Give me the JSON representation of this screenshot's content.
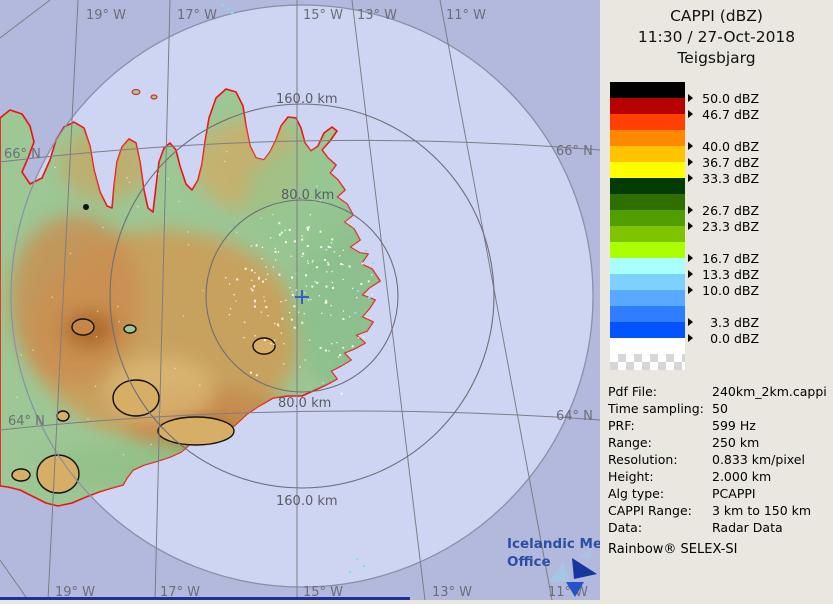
{
  "panel": {
    "title_lines": [
      "CAPPI (dBZ)",
      "11:30 / 27-Oct-2018",
      "Teigsbjarg"
    ],
    "scale": {
      "unit": "dBZ",
      "bands": [
        {
          "color": "#000000",
          "label": "50.0"
        },
        {
          "color": "#b70000",
          "label": "46.7"
        },
        {
          "color": "#ff4000",
          "label": null
        },
        {
          "color": "#ff8800",
          "label": "40.0"
        },
        {
          "color": "#ffc300",
          "label": "36.7"
        },
        {
          "color": "#ffff00",
          "label": "33.3"
        },
        {
          "color": "#043b00",
          "label": null
        },
        {
          "color": "#2e6f00",
          "label": "26.7"
        },
        {
          "color": "#529d00",
          "label": "23.3"
        },
        {
          "color": "#7ec400",
          "label": null
        },
        {
          "color": "#aaff00",
          "label": "16.7"
        },
        {
          "color": "#a8ffff",
          "label": "13.3"
        },
        {
          "color": "#7ed1ff",
          "label": "10.0"
        },
        {
          "color": "#58a9ff",
          "label": null
        },
        {
          "color": "#2e7eff",
          "label": "3.3"
        },
        {
          "color": "#0353ff",
          "label": "0.0"
        },
        {
          "color": "#ffffff",
          "label": null
        },
        {
          "color": "checker",
          "label": null
        }
      ]
    },
    "metadata": [
      {
        "label": "Pdf File:",
        "value": "240km_2km.cappi"
      },
      {
        "label": "Time sampling:",
        "value": "50"
      },
      {
        "label": "PRF:",
        "value": "599 Hz"
      },
      {
        "label": "Range:",
        "value": "250 km"
      },
      {
        "label": "Resolution:",
        "value": "0.833 km/pixel"
      },
      {
        "label": "Height:",
        "value": "2.000 km"
      },
      {
        "label": "Alg type:",
        "value": "PCAPPI"
      },
      {
        "label": "CAPPI Range:",
        "value": "3 km to 150 km"
      },
      {
        "label": "Data:",
        "value": "Radar Data"
      }
    ],
    "brand": "Rainbow® SELEX-SI"
  },
  "map": {
    "grid": {
      "lon_labels": [
        "19° W",
        "17° W",
        "15° W",
        "13° W",
        "11° W"
      ],
      "lat_labels": [
        "66° N",
        "64° N"
      ]
    },
    "rings": {
      "r160": "160.0 km",
      "r80": "80.0 km"
    },
    "logo": {
      "line1": "Icelandic Met",
      "line2": "Office"
    }
  },
  "colors": {
    "sea_outer": "#b2b9dd",
    "sea_inner": "#ced5f2",
    "circle_edge": "#8a90a8",
    "land_base": "#9dc795",
    "coastline": "#ee1111",
    "grid": "#7d7d86",
    "ring": "#6e6e78",
    "site_marker": "#3b5ec6",
    "bottom_strip": "#1e2f9e",
    "logo_text": "#2b4fa5",
    "logo_light": "#a7c6e6",
    "logo_dark": "#15379e",
    "logo_blue": "#2553cc",
    "echo_white": "#ffffff",
    "echo_cyan": "#7de0ee"
  }
}
